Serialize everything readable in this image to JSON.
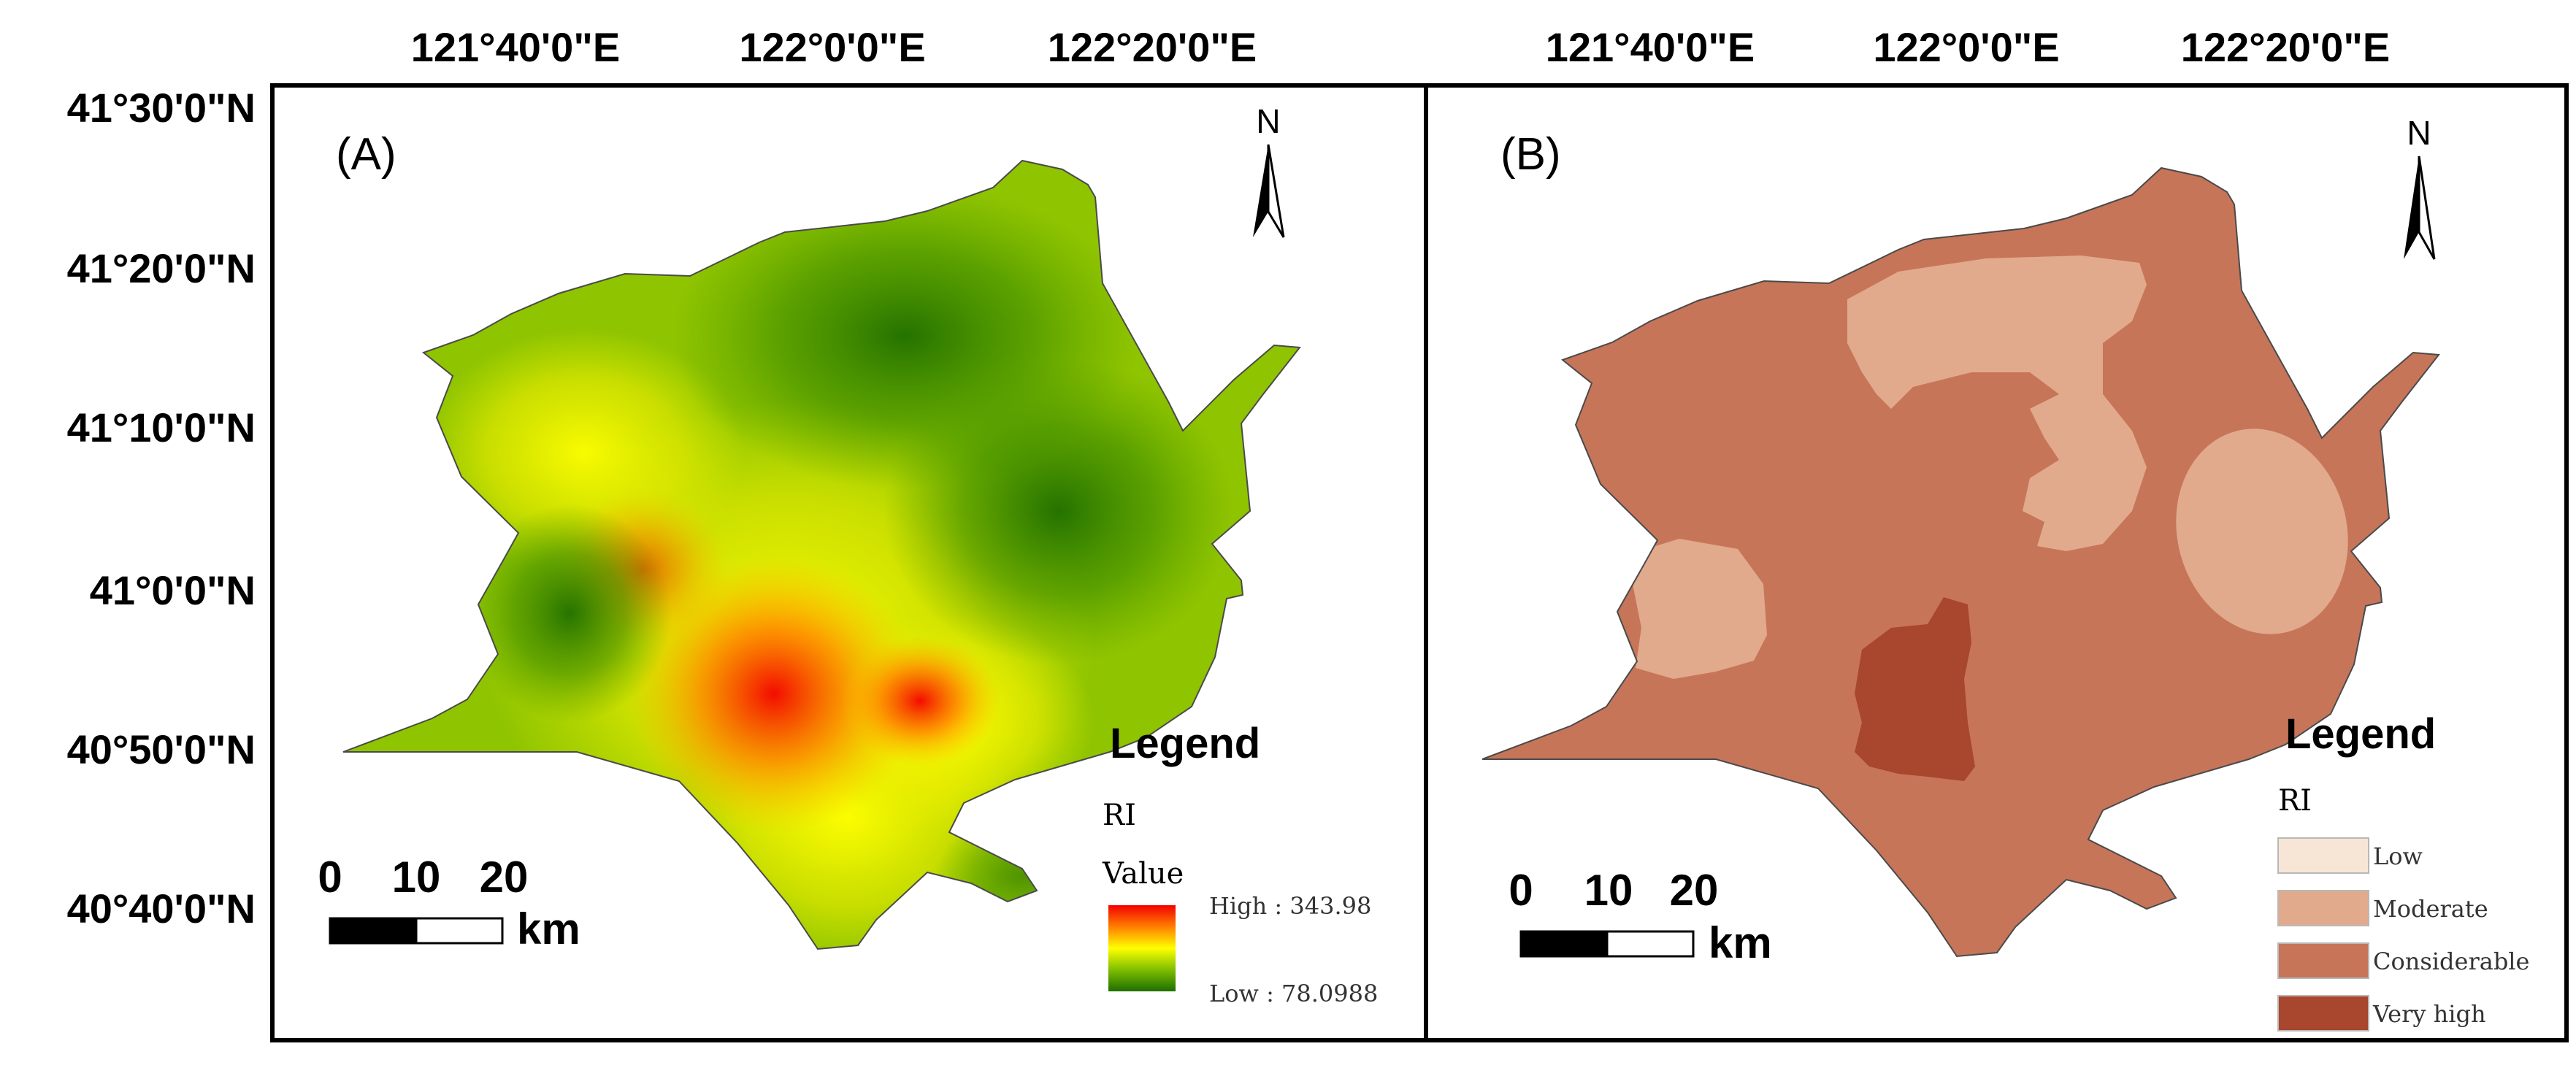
{
  "top_axis": {
    "labels": [
      "121°40'0\"E",
      "122°0'0\"E",
      "122°20'0\"E"
    ]
  },
  "left_axis": {
    "labels": [
      "41°30'0\"N",
      "41°20'0\"N",
      "41°10'0\"N",
      "41°0'0\"N",
      "40°50'0\"N",
      "40°40'0\"N"
    ]
  },
  "panels": {
    "a": {
      "label": "(A)",
      "north": "N",
      "legend_title": "Legend",
      "field": "RI",
      "value_label": "Value",
      "high_label": "High : 343.98",
      "low_label": "Low : 78.0988",
      "ramp_colors": [
        "#f40000",
        "#ff7f00",
        "#ffff00",
        "#7ebe00",
        "#1f6e00"
      ],
      "scale": {
        "ticks": [
          "0",
          "10",
          "20"
        ],
        "unit": "km"
      }
    },
    "b": {
      "label": "(B)",
      "north": "N",
      "legend_title": "Legend",
      "field": "RI",
      "classes": [
        {
          "label": "Low",
          "color": "#f7e6d6"
        },
        {
          "label": "Moderate",
          "color": "#e2aa8c"
        },
        {
          "label": "Considerable",
          "color": "#c77559"
        },
        {
          "label": "Very high",
          "color": "#a8462e"
        }
      ],
      "scale": {
        "ticks": [
          "0",
          "10",
          "20"
        ],
        "unit": "km"
      }
    }
  }
}
